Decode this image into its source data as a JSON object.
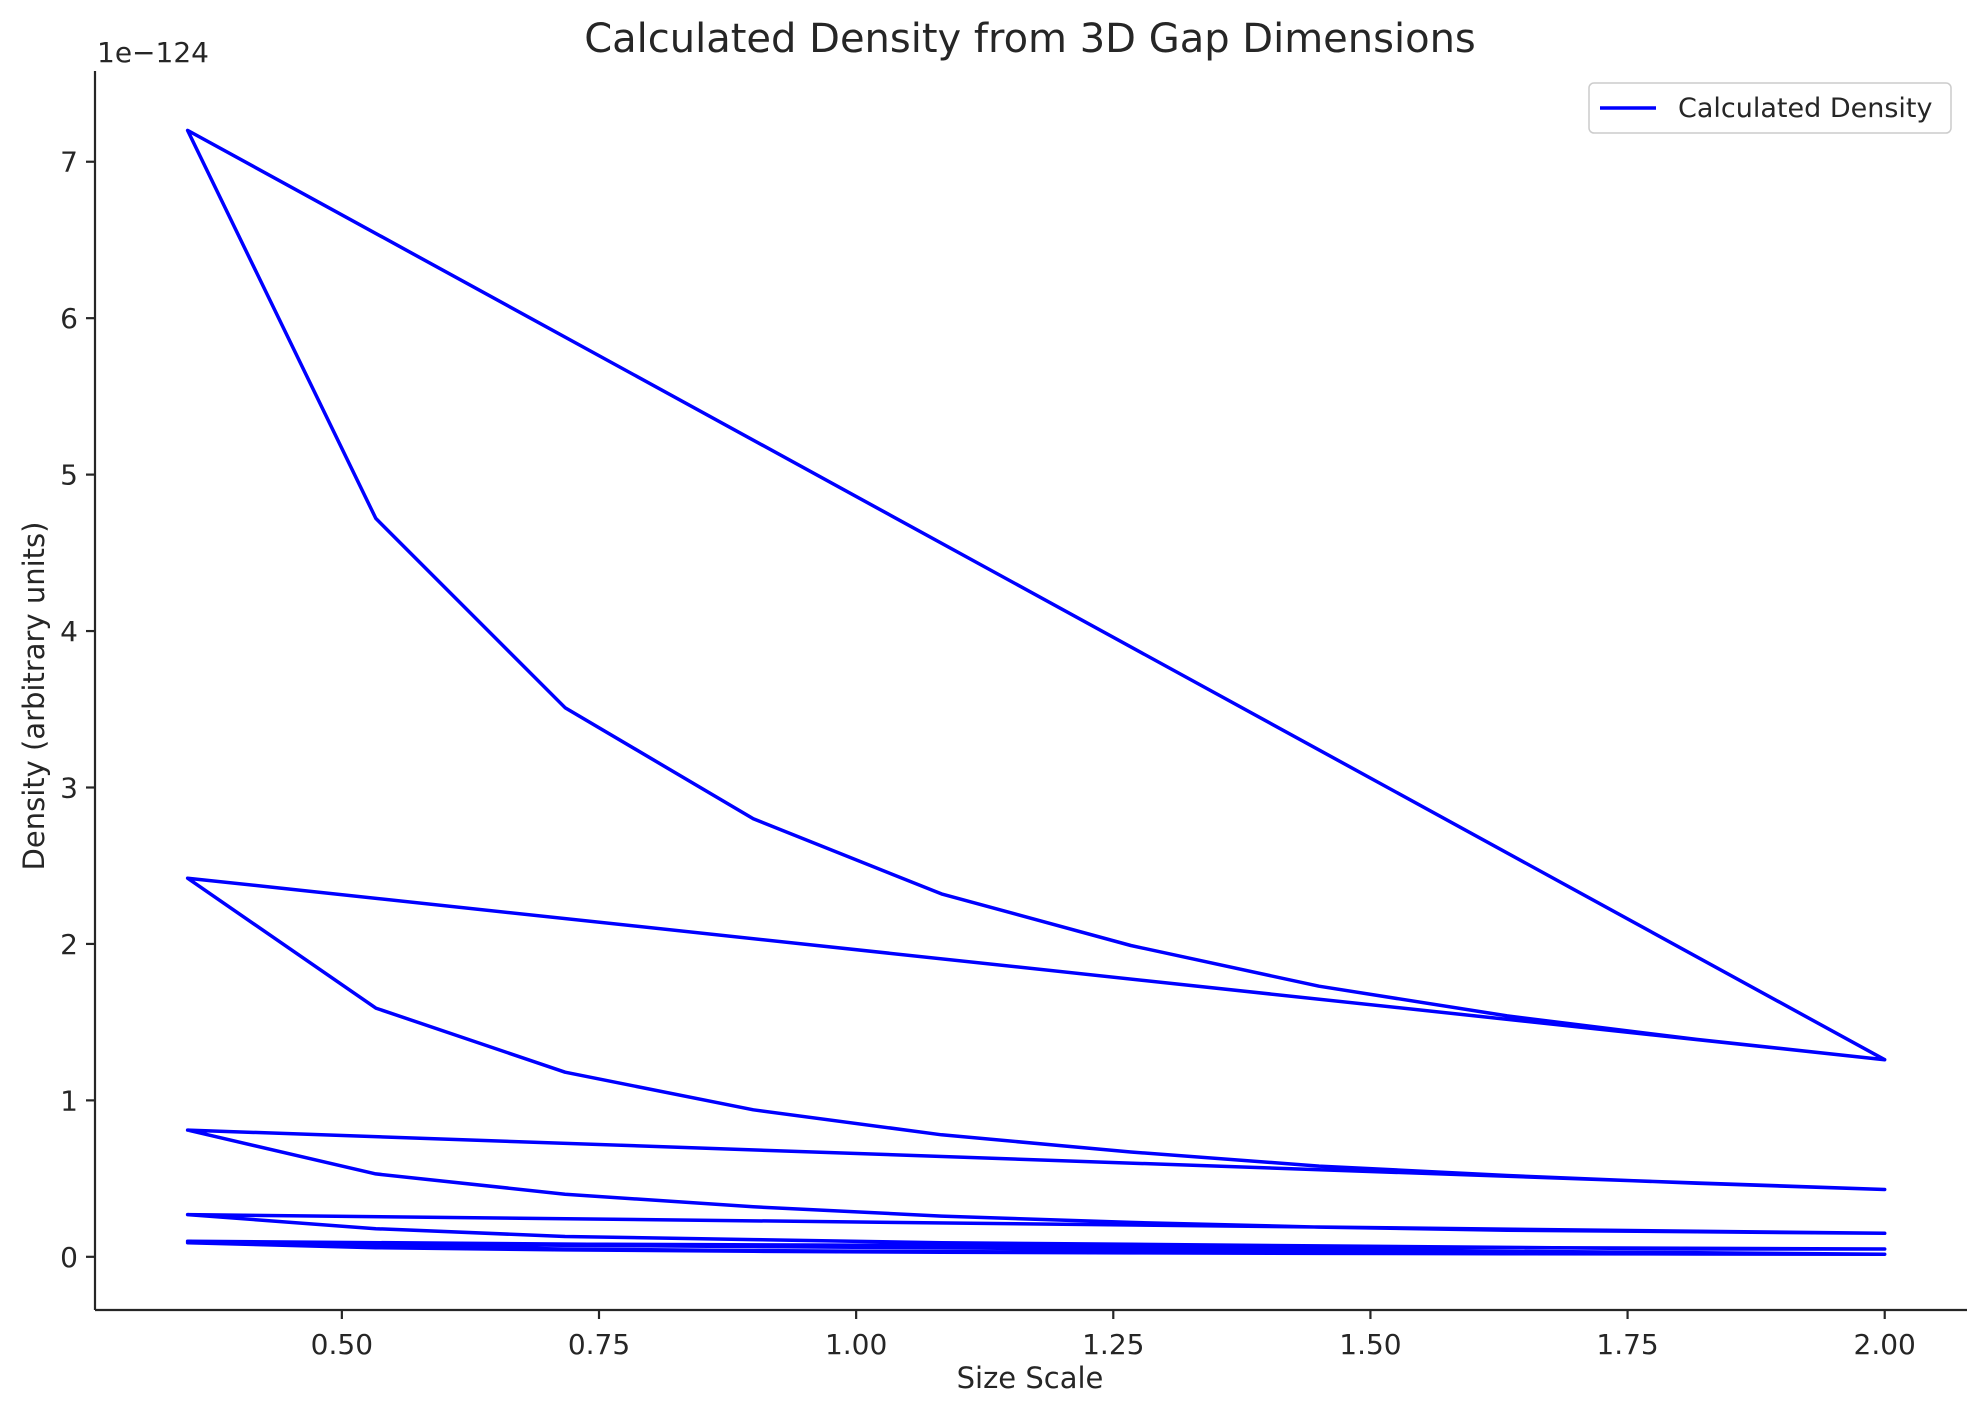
{
  "chart_data": {
    "type": "line",
    "title": "Calculated Density from 3D Gap Dimensions",
    "xlabel": "Size Scale",
    "ylabel": "Density (arbitrary units)",
    "y_offset_label": "1e−124",
    "y_scale": 1e-124,
    "xlim": [
      0.26,
      2.08
    ],
    "ylim": [
      -0.34,
      7.58
    ],
    "xticks": [
      {
        "value": 0.5,
        "label": "0.50"
      },
      {
        "value": 0.75,
        "label": "0.75"
      },
      {
        "value": 1.0,
        "label": "1.00"
      },
      {
        "value": 1.25,
        "label": "1.25"
      },
      {
        "value": 1.5,
        "label": "1.50"
      },
      {
        "value": 1.75,
        "label": "1.75"
      },
      {
        "value": 2.0,
        "label": "2.00"
      }
    ],
    "yticks": [
      {
        "value": 0,
        "label": "0"
      },
      {
        "value": 1,
        "label": "1"
      },
      {
        "value": 2,
        "label": "2"
      },
      {
        "value": 3,
        "label": "3"
      },
      {
        "value": 4,
        "label": "4"
      },
      {
        "value": 5,
        "label": "5"
      },
      {
        "value": 6,
        "label": "6"
      },
      {
        "value": 7,
        "label": "7"
      }
    ],
    "grid": false,
    "legend_position": "top-right",
    "series": [
      {
        "name": "Calculated Density",
        "color": "#0000ff",
        "x": [
          2.0,
          0.35,
          0.533,
          0.717,
          0.9,
          1.083,
          1.267,
          1.45,
          1.633,
          1.817,
          2.0,
          0.35,
          0.533,
          0.717,
          0.9,
          1.083,
          1.267,
          1.45,
          1.633,
          1.817,
          2.0,
          0.35,
          0.533,
          0.717,
          0.9,
          1.083,
          1.267,
          1.45,
          1.633,
          1.817,
          2.0,
          0.35,
          0.533,
          0.717,
          0.9,
          1.083,
          1.267,
          1.45,
          1.633,
          1.817,
          2.0,
          0.35,
          0.533,
          0.717,
          0.9,
          1.083,
          1.267,
          1.45,
          1.633,
          1.817,
          2.0,
          0.35,
          0.533,
          0.717,
          0.9,
          1.083,
          1.267,
          1.45,
          1.633,
          1.817,
          2.0,
          0.35,
          0.533,
          0.717,
          0.9,
          1.083,
          1.267,
          1.45,
          1.633,
          1.817,
          2.0,
          0.35,
          0.533,
          0.717,
          0.9,
          1.083,
          1.267,
          1.45,
          1.633,
          1.817,
          2.0
        ],
        "y": [
          1.26,
          7.2,
          4.72,
          3.51,
          2.8,
          2.32,
          1.99,
          1.73,
          1.54,
          1.39,
          1.26,
          2.42,
          1.59,
          1.18,
          0.94,
          0.78,
          0.67,
          0.58,
          0.52,
          0.47,
          0.43,
          0.81,
          0.53,
          0.4,
          0.32,
          0.26,
          0.22,
          0.19,
          0.17,
          0.16,
          0.15,
          0.27,
          0.18,
          0.13,
          0.11,
          0.09,
          0.08,
          0.07,
          0.06,
          0.05,
          0.05,
          0.09,
          0.06,
          0.045,
          0.036,
          0.03,
          0.026,
          0.022,
          0.02,
          0.018,
          0.017,
          0.1,
          0.065,
          0.05,
          0.04,
          0.033,
          0.028,
          0.024,
          0.021,
          0.019,
          0.017,
          0.09,
          0.06,
          0.045,
          0.036,
          0.03,
          0.026,
          0.022,
          0.02,
          0.018,
          0.016,
          0.09,
          0.058,
          0.044,
          0.035,
          0.029,
          0.025,
          0.022,
          0.02,
          0.018,
          0.016
        ]
      }
    ]
  }
}
